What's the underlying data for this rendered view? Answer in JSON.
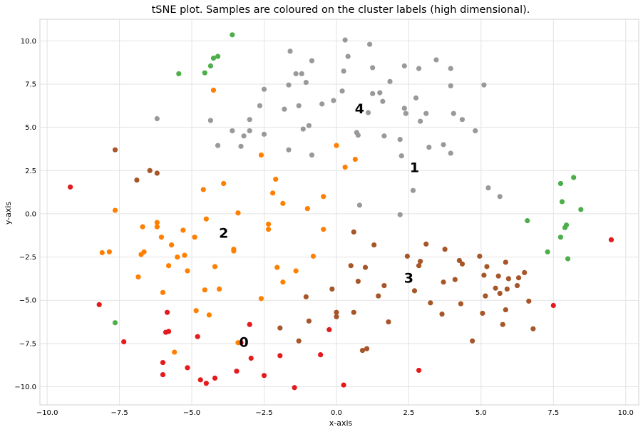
{
  "chart_data": {
    "type": "scatter",
    "title": "tSNE plot. Samples are coloured on the cluster labels (high dimensional).",
    "xlabel": "x-axis",
    "ylabel": "y-axis",
    "xlim": [
      -10.25,
      10.45
    ],
    "ylim": [
      -11.05,
      11.25
    ],
    "xticks": [
      -10.0,
      -7.5,
      -5.0,
      -2.5,
      0.0,
      2.5,
      5.0,
      7.5,
      10.0
    ],
    "xtick_labels": [
      "−10.0",
      "−7.5",
      "−5.0",
      "−2.5",
      "0.0",
      "2.5",
      "5.0",
      "7.5",
      "10.0"
    ],
    "yticks": [
      -10.0,
      -7.5,
      -5.0,
      -2.5,
      0.0,
      2.5,
      5.0,
      7.5,
      10.0
    ],
    "ytick_labels": [
      "−10.0",
      "−7.5",
      "−5.0",
      "−2.5",
      "0.0",
      "2.5",
      "5.0",
      "7.5",
      "10.0"
    ],
    "grid": true,
    "cluster_labels": [
      {
        "text": "0",
        "x": -3.2,
        "y": -7.4
      },
      {
        "text": "1",
        "x": 2.7,
        "y": 2.7
      },
      {
        "text": "2",
        "x": -3.9,
        "y": -1.1
      },
      {
        "text": "3",
        "x": 2.5,
        "y": -3.7
      },
      {
        "text": "4",
        "x": 0.8,
        "y": 6.1
      }
    ],
    "series": [
      {
        "color": "#e41a1c",
        "points": [
          [
            -9.2,
            1.55
          ],
          [
            -8.2,
            -5.25
          ],
          [
            -7.35,
            -7.4
          ],
          [
            -5.85,
            -5.7
          ],
          [
            -5.9,
            -6.85
          ],
          [
            -5.8,
            -6.8
          ],
          [
            -6.0,
            -8.6
          ],
          [
            -6.0,
            -9.3
          ],
          [
            -5.15,
            -8.9
          ],
          [
            -4.8,
            -7.1
          ],
          [
            -4.7,
            -9.6
          ],
          [
            -4.5,
            -9.8
          ],
          [
            -4.2,
            -9.5
          ],
          [
            -3.45,
            -9.1
          ],
          [
            -3.3,
            -7.45
          ],
          [
            -3.0,
            -6.4
          ],
          [
            -2.95,
            -8.35
          ],
          [
            -2.5,
            -9.35
          ],
          [
            -1.95,
            -8.2
          ],
          [
            -1.45,
            -10.05
          ],
          [
            -0.55,
            -8.15
          ],
          [
            -0.25,
            -6.7
          ],
          [
            0.25,
            -9.9
          ],
          [
            2.85,
            -9.05
          ],
          [
            7.5,
            -5.3
          ],
          [
            9.5,
            -1.5
          ]
        ]
      },
      {
        "color": "#4daf4a",
        "points": [
          [
            -3.6,
            10.35
          ],
          [
            -4.1,
            9.1
          ],
          [
            -4.25,
            9.0
          ],
          [
            -4.35,
            8.55
          ],
          [
            -4.55,
            8.15
          ],
          [
            -5.45,
            8.1
          ],
          [
            -7.65,
            -6.3
          ],
          [
            6.6,
            -0.4
          ],
          [
            7.3,
            -2.2
          ],
          [
            7.75,
            -1.35
          ],
          [
            7.75,
            1.75
          ],
          [
            7.8,
            0.7
          ],
          [
            7.9,
            -0.8
          ],
          [
            7.95,
            -0.65
          ],
          [
            8.0,
            -2.6
          ],
          [
            8.2,
            2.1
          ],
          [
            8.45,
            0.25
          ]
        ]
      },
      {
        "color": "#ff7f00",
        "points": [
          [
            -4.25,
            7.15
          ],
          [
            -7.65,
            0.2
          ],
          [
            -8.1,
            -2.25
          ],
          [
            -7.85,
            -2.2
          ],
          [
            -6.7,
            -0.75
          ],
          [
            -6.75,
            -2.35
          ],
          [
            -6.65,
            -2.2
          ],
          [
            -6.85,
            -3.65
          ],
          [
            -6.2,
            -0.5
          ],
          [
            -6.2,
            -0.75
          ],
          [
            -6.05,
            -1.35
          ],
          [
            -6.0,
            -4.55
          ],
          [
            -5.8,
            -3.0
          ],
          [
            -5.7,
            -1.8
          ],
          [
            -5.5,
            -2.5
          ],
          [
            -5.3,
            -0.95
          ],
          [
            -5.25,
            -2.4
          ],
          [
            -5.15,
            -3.3
          ],
          [
            -4.9,
            -1.35
          ],
          [
            -4.85,
            -5.6
          ],
          [
            -4.6,
            1.4
          ],
          [
            -4.55,
            -4.4
          ],
          [
            -4.5,
            -0.3
          ],
          [
            -4.4,
            -5.85
          ],
          [
            -4.2,
            -3.05
          ],
          [
            -4.05,
            -4.35
          ],
          [
            -3.9,
            1.75
          ],
          [
            -3.55,
            -2.05
          ],
          [
            -3.55,
            -2.15
          ],
          [
            -3.4,
            0.05
          ],
          [
            -3.4,
            -7.45
          ],
          [
            -2.6,
            3.4
          ],
          [
            -2.6,
            -4.9
          ],
          [
            -2.35,
            -0.6
          ],
          [
            -2.35,
            -0.9
          ],
          [
            -2.2,
            1.2
          ],
          [
            -2.1,
            2.0
          ],
          [
            -2.05,
            -3.1
          ],
          [
            -1.85,
            0.6
          ],
          [
            -1.85,
            -3.95
          ],
          [
            -1.4,
            -3.3
          ],
          [
            -1.0,
            0.3
          ],
          [
            -0.8,
            -2.45
          ],
          [
            -0.45,
            1.0
          ],
          [
            -0.45,
            -0.9
          ],
          [
            0.0,
            3.95
          ],
          [
            0.3,
            2.7
          ],
          [
            0.65,
            3.15
          ],
          [
            -5.6,
            -8.0
          ]
        ]
      },
      {
        "color": "#a65628",
        "points": [
          [
            -7.65,
            3.7
          ],
          [
            -6.45,
            2.5
          ],
          [
            -6.2,
            2.35
          ],
          [
            -6.9,
            1.95
          ],
          [
            -1.95,
            -6.6
          ],
          [
            -1.3,
            -7.35
          ],
          [
            -1.05,
            -4.8
          ],
          [
            -0.95,
            -6.2
          ],
          [
            -0.15,
            -4.35
          ],
          [
            0.0,
            -5.7
          ],
          [
            0.0,
            -5.95
          ],
          [
            0.5,
            -3.0
          ],
          [
            0.6,
            -1.05
          ],
          [
            0.6,
            -5.7
          ],
          [
            0.75,
            -3.9
          ],
          [
            0.9,
            -7.9
          ],
          [
            1.0,
            -3.1
          ],
          [
            1.05,
            -7.8
          ],
          [
            1.3,
            -1.8
          ],
          [
            1.45,
            -4.75
          ],
          [
            1.65,
            -4.15
          ],
          [
            1.8,
            -6.25
          ],
          [
            2.45,
            -2.45
          ],
          [
            2.7,
            -4.45
          ],
          [
            2.85,
            -3.0
          ],
          [
            2.9,
            -2.75
          ],
          [
            3.1,
            -1.75
          ],
          [
            3.25,
            -5.15
          ],
          [
            3.65,
            -5.8
          ],
          [
            3.7,
            -3.95
          ],
          [
            3.75,
            -2.05
          ],
          [
            4.1,
            -3.8
          ],
          [
            4.25,
            -2.7
          ],
          [
            4.3,
            -5.2
          ],
          [
            4.35,
            -2.9
          ],
          [
            4.7,
            -7.35
          ],
          [
            4.95,
            -2.45
          ],
          [
            5.05,
            -5.75
          ],
          [
            5.1,
            -3.55
          ],
          [
            5.15,
            -4.75
          ],
          [
            5.2,
            -3.05
          ],
          [
            5.5,
            -4.3
          ],
          [
            5.6,
            -3.6
          ],
          [
            5.65,
            -4.6
          ],
          [
            5.75,
            -6.4
          ],
          [
            5.85,
            -5.55
          ],
          [
            5.85,
            -2.8
          ],
          [
            5.9,
            -4.35
          ],
          [
            5.95,
            -3.75
          ],
          [
            6.25,
            -4.15
          ],
          [
            6.3,
            -3.7
          ],
          [
            6.5,
            -3.4
          ],
          [
            6.65,
            -5.05
          ],
          [
            6.8,
            -6.65
          ]
        ]
      },
      {
        "color": "#999999",
        "points": [
          [
            -6.2,
            5.5
          ],
          [
            -4.35,
            5.4
          ],
          [
            -4.1,
            3.95
          ],
          [
            -3.6,
            4.8
          ],
          [
            -3.3,
            3.9
          ],
          [
            -3.2,
            4.5
          ],
          [
            -3.0,
            4.8
          ],
          [
            -3.0,
            5.45
          ],
          [
            -2.65,
            6.25
          ],
          [
            -2.5,
            7.2
          ],
          [
            -2.5,
            4.6
          ],
          [
            -1.8,
            6.05
          ],
          [
            -1.65,
            3.7
          ],
          [
            -1.65,
            7.45
          ],
          [
            -1.6,
            9.4
          ],
          [
            -1.4,
            8.1
          ],
          [
            -1.3,
            6.25
          ],
          [
            -1.2,
            8.1
          ],
          [
            -1.05,
            7.6
          ],
          [
            -0.85,
            8.85
          ],
          [
            -1.15,
            4.9
          ],
          [
            -0.95,
            5.1
          ],
          [
            -0.85,
            3.4
          ],
          [
            -0.5,
            6.35
          ],
          [
            -0.1,
            6.55
          ],
          [
            0.2,
            7.1
          ],
          [
            0.25,
            8.25
          ],
          [
            0.3,
            10.05
          ],
          [
            0.4,
            9.1
          ],
          [
            0.7,
            4.7
          ],
          [
            0.75,
            4.55
          ],
          [
            0.8,
            0.5
          ],
          [
            1.1,
            5.85
          ],
          [
            1.15,
            9.8
          ],
          [
            1.25,
            8.45
          ],
          [
            1.25,
            6.95
          ],
          [
            1.5,
            7.0
          ],
          [
            1.6,
            6.5
          ],
          [
            1.65,
            4.5
          ],
          [
            1.85,
            7.65
          ],
          [
            2.2,
            4.3
          ],
          [
            2.25,
            3.35
          ],
          [
            2.35,
            6.1
          ],
          [
            2.35,
            8.55
          ],
          [
            2.4,
            5.8
          ],
          [
            2.65,
            1.35
          ],
          [
            2.2,
            -0.05
          ],
          [
            2.75,
            6.7
          ],
          [
            2.85,
            8.4
          ],
          [
            2.9,
            5.35
          ],
          [
            3.1,
            5.8
          ],
          [
            3.2,
            3.85
          ],
          [
            3.45,
            8.9
          ],
          [
            3.7,
            4.0
          ],
          [
            3.95,
            7.4
          ],
          [
            3.95,
            8.4
          ],
          [
            3.95,
            3.5
          ],
          [
            4.05,
            5.8
          ],
          [
            4.35,
            5.45
          ],
          [
            4.8,
            4.8
          ],
          [
            5.1,
            7.45
          ],
          [
            5.25,
            1.5
          ],
          [
            5.65,
            1.0
          ]
        ]
      }
    ]
  }
}
